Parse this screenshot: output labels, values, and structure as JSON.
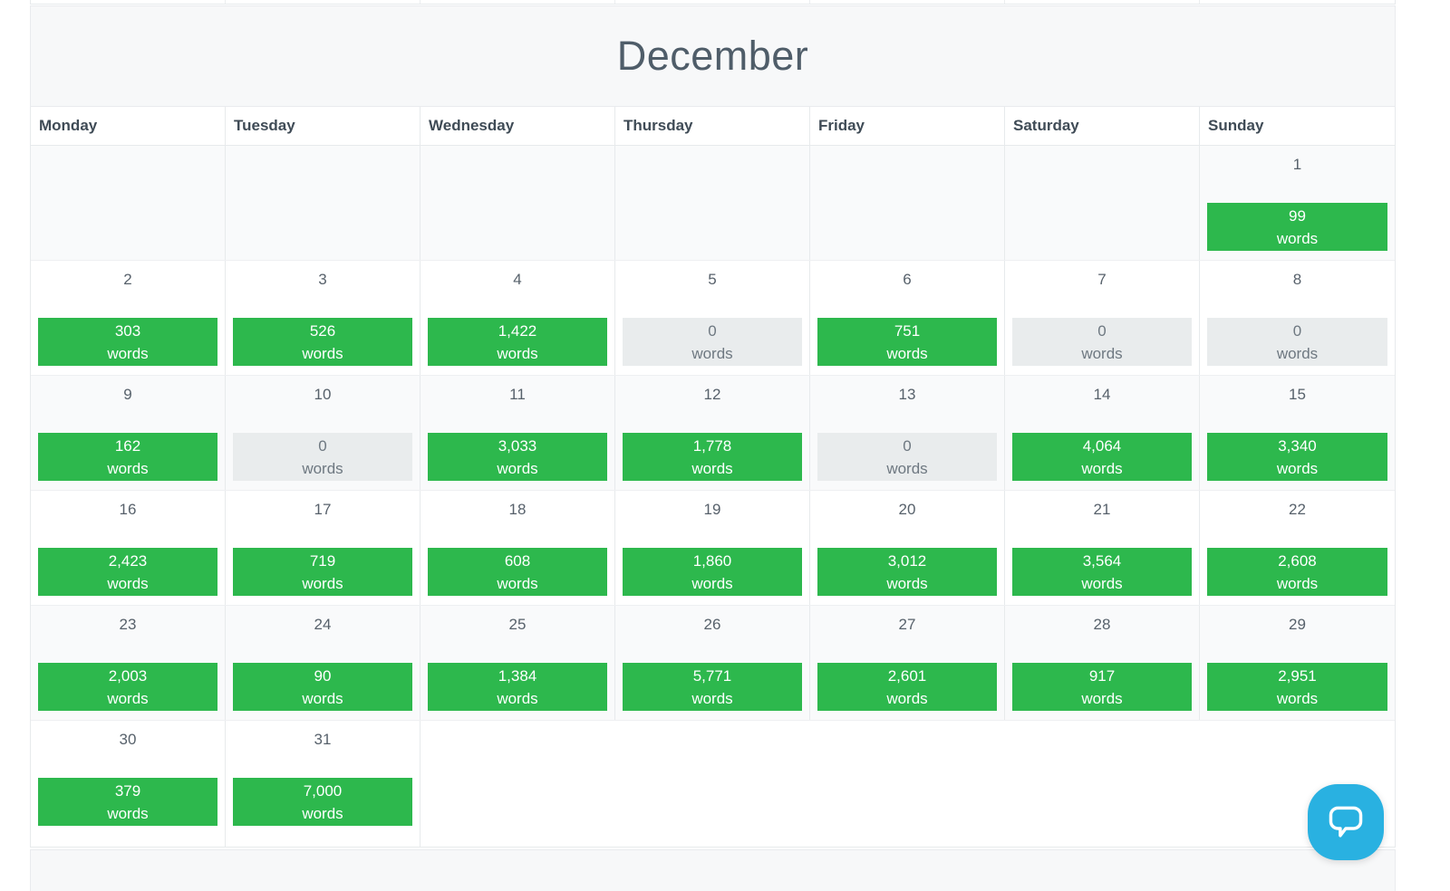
{
  "calendar": {
    "title": "December",
    "weekday_headers": [
      "Monday",
      "Tuesday",
      "Wednesday",
      "Thursday",
      "Friday",
      "Saturday",
      "Sunday"
    ],
    "words_label": "words",
    "weeks": [
      [
        null,
        null,
        null,
        null,
        null,
        null,
        {
          "day": "1",
          "words": "99",
          "zero": false
        }
      ],
      [
        {
          "day": "2",
          "words": "303",
          "zero": false
        },
        {
          "day": "3",
          "words": "526",
          "zero": false
        },
        {
          "day": "4",
          "words": "1,422",
          "zero": false
        },
        {
          "day": "5",
          "words": "0",
          "zero": true
        },
        {
          "day": "6",
          "words": "751",
          "zero": false
        },
        {
          "day": "7",
          "words": "0",
          "zero": true
        },
        {
          "day": "8",
          "words": "0",
          "zero": true
        }
      ],
      [
        {
          "day": "9",
          "words": "162",
          "zero": false
        },
        {
          "day": "10",
          "words": "0",
          "zero": true
        },
        {
          "day": "11",
          "words": "3,033",
          "zero": false
        },
        {
          "day": "12",
          "words": "1,778",
          "zero": false
        },
        {
          "day": "13",
          "words": "0",
          "zero": true
        },
        {
          "day": "14",
          "words": "4,064",
          "zero": false
        },
        {
          "day": "15",
          "words": "3,340",
          "zero": false
        }
      ],
      [
        {
          "day": "16",
          "words": "2,423",
          "zero": false
        },
        {
          "day": "17",
          "words": "719",
          "zero": false
        },
        {
          "day": "18",
          "words": "608",
          "zero": false
        },
        {
          "day": "19",
          "words": "1,860",
          "zero": false
        },
        {
          "day": "20",
          "words": "3,012",
          "zero": false
        },
        {
          "day": "21",
          "words": "3,564",
          "zero": false
        },
        {
          "day": "22",
          "words": "2,608",
          "zero": false
        }
      ],
      [
        {
          "day": "23",
          "words": "2,003",
          "zero": false
        },
        {
          "day": "24",
          "words": "90",
          "zero": false
        },
        {
          "day": "25",
          "words": "1,384",
          "zero": false
        },
        {
          "day": "26",
          "words": "5,771",
          "zero": false
        },
        {
          "day": "27",
          "words": "2,601",
          "zero": false
        },
        {
          "day": "28",
          "words": "917",
          "zero": false
        },
        {
          "day": "29",
          "words": "2,951",
          "zero": false
        }
      ],
      [
        {
          "day": "30",
          "words": "379",
          "zero": false
        },
        {
          "day": "31",
          "words": "7,000",
          "zero": false
        },
        null,
        null,
        null,
        null,
        null
      ]
    ]
  },
  "colors": {
    "badge_green": "#2db84d",
    "badge_green_text": "#ffffff",
    "badge_zero_bg": "#e9eced",
    "badge_zero_text": "#6e7881",
    "banner_gray": "#f7f8f9",
    "chat_blue": "#29b1e1"
  }
}
